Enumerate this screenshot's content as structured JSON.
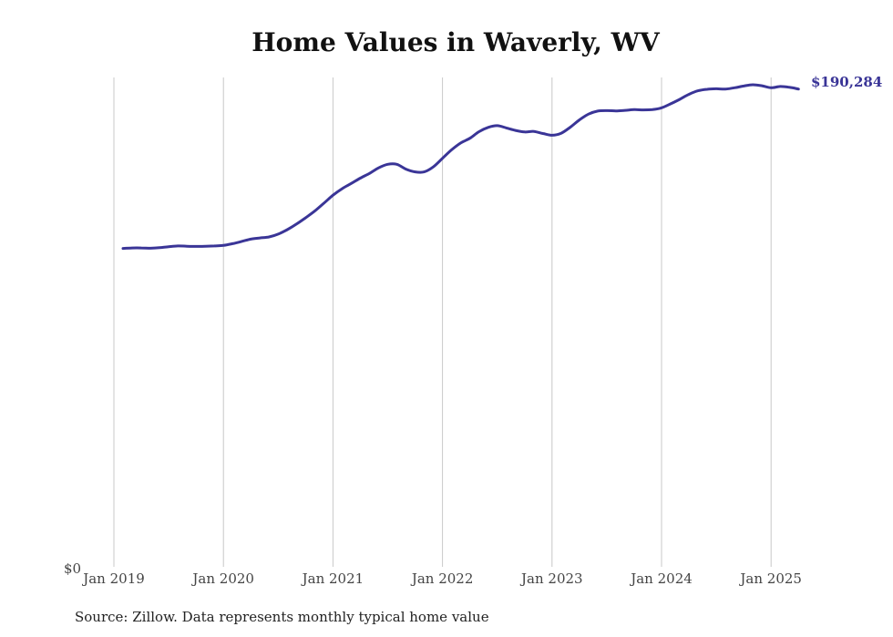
{
  "chart_data": {
    "type": "line",
    "title": "Home Values in Waverly, WV",
    "xlabel": "",
    "ylabel": "",
    "x_ticks": [
      "Jan 2019",
      "Jan 2020",
      "Jan 2021",
      "Jan 2022",
      "Jan 2023",
      "Jan 2024",
      "Jan 2025"
    ],
    "y_ticks": [
      "$0"
    ],
    "ylim": [
      0,
      192000
    ],
    "grid": "vertical",
    "legend": "none",
    "line_color": "#3a3597",
    "gridline_color": "#c8c8c8",
    "end_label": "$190,284",
    "series": [
      {
        "x": [
          "2019-02",
          "2019-03",
          "2019-04",
          "2019-05",
          "2019-06",
          "2019-07",
          "2019-08",
          "2019-09",
          "2019-10",
          "2019-11",
          "2019-12",
          "2020-01",
          "2020-02",
          "2020-03",
          "2020-04",
          "2020-05",
          "2020-06",
          "2020-07",
          "2020-08",
          "2020-09",
          "2020-10",
          "2020-11",
          "2020-12",
          "2021-01",
          "2021-02",
          "2021-03",
          "2021-04",
          "2021-05",
          "2021-06",
          "2021-07",
          "2021-08",
          "2021-09",
          "2021-10",
          "2021-11",
          "2021-12",
          "2022-01",
          "2022-02",
          "2022-03",
          "2022-04",
          "2022-05",
          "2022-06",
          "2022-07",
          "2022-08",
          "2022-09",
          "2022-10",
          "2022-11",
          "2022-12",
          "2023-01",
          "2023-02",
          "2023-03",
          "2023-04",
          "2023-05",
          "2023-06",
          "2023-07",
          "2023-08",
          "2023-09",
          "2023-10",
          "2023-11",
          "2023-12",
          "2024-01",
          "2024-02",
          "2024-03",
          "2024-04",
          "2024-05",
          "2024-06",
          "2024-07",
          "2024-08",
          "2024-09",
          "2024-10",
          "2024-11",
          "2024-12",
          "2025-01",
          "2025-02",
          "2025-03",
          "2025-04"
        ],
        "values": [
          126800,
          127000,
          127000,
          126900,
          127100,
          127500,
          127800,
          127700,
          127600,
          127700,
          127800,
          128000,
          128700,
          129600,
          130500,
          131000,
          131400,
          132500,
          134300,
          136500,
          139000,
          141700,
          144800,
          148000,
          150600,
          152700,
          154800,
          156700,
          158900,
          160300,
          160300,
          158400,
          157300,
          157300,
          159300,
          162700,
          166100,
          168800,
          170700,
          173300,
          175000,
          175700,
          174800,
          173800,
          173200,
          173400,
          172600,
          171900,
          172700,
          175100,
          178000,
          180300,
          181500,
          181700,
          181600,
          181800,
          182100,
          182000,
          182100,
          182800,
          184400,
          186200,
          188200,
          189600,
          190200,
          190400,
          190300,
          190800,
          191500,
          192000,
          191600,
          190800,
          191300,
          191000,
          190284
        ]
      }
    ]
  },
  "source_note": "Source: Zillow. Data represents monthly typical home value"
}
